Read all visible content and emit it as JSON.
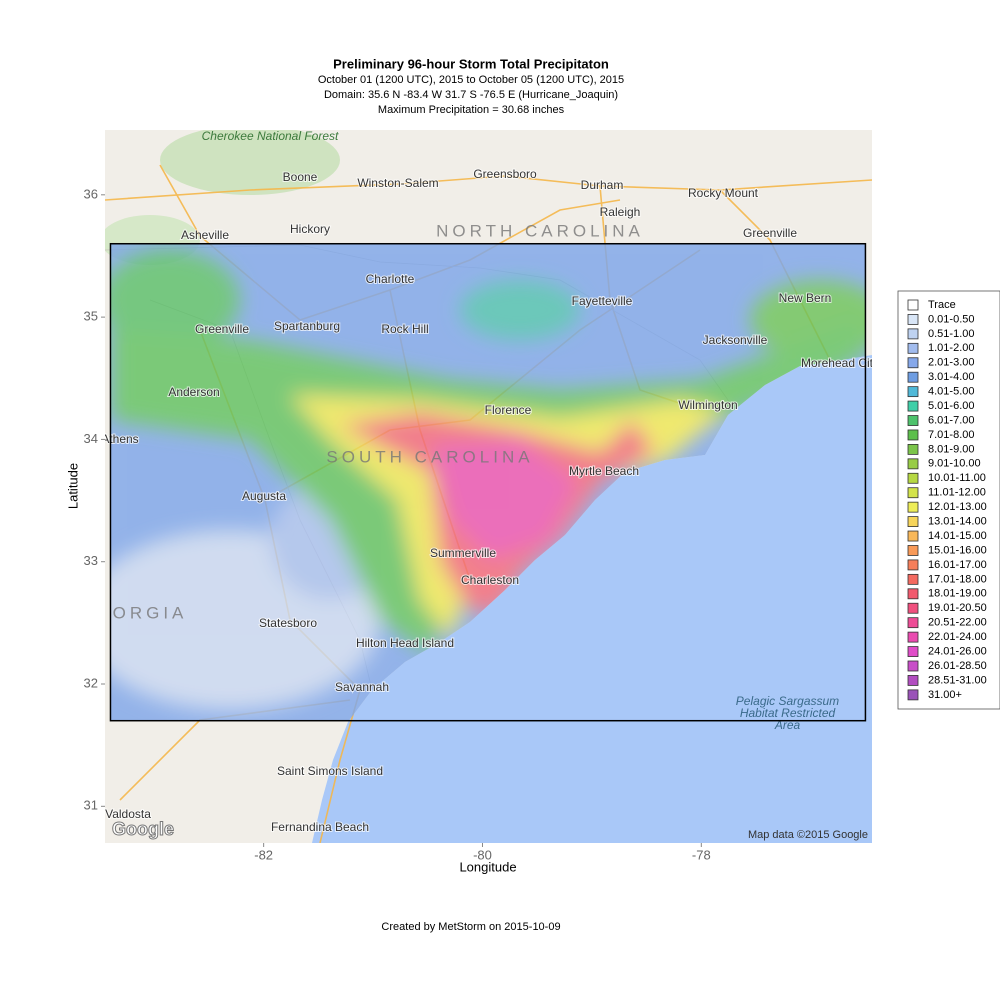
{
  "header": {
    "title": "Preliminary 96-hour Storm Total Precipitaton",
    "subtitle_lines": [
      "October 01 (1200 UTC), 2015 to October 05 (1200 UTC), 2015",
      "Domain: 35.6 N -83.4 W 31.7 S -76.5 E (Hurricane_Joaquin)",
      "Maximum Precipitation = 30.68 inches"
    ]
  },
  "axes": {
    "x_label": "Longitude",
    "y_label": "Latitude",
    "xlim": [
      -83.45,
      -76.44
    ],
    "ylim": [
      30.7,
      36.53
    ],
    "xticks": [
      -82,
      -80,
      -78
    ],
    "yticks": [
      31,
      32,
      33,
      34,
      35,
      36
    ]
  },
  "domain_box": {
    "north": 35.6,
    "west": -83.4,
    "south": 31.7,
    "east": -76.5
  },
  "legend": {
    "items": [
      {
        "label": "Trace",
        "color": "#ffffff"
      },
      {
        "label": "0.01-0.50",
        "color": "#d9e6f7"
      },
      {
        "label": "0.51-1.00",
        "color": "#bed2f1"
      },
      {
        "label": "1.01-2.00",
        "color": "#a2bcee"
      },
      {
        "label": "2.01-3.00",
        "color": "#86a8ea"
      },
      {
        "label": "3.01-4.00",
        "color": "#6e9de2"
      },
      {
        "label": "4.01-5.00",
        "color": "#50b9d8"
      },
      {
        "label": "5.01-6.00",
        "color": "#40cfa8"
      },
      {
        "label": "6.01-7.00",
        "color": "#4ec26c"
      },
      {
        "label": "7.01-8.00",
        "color": "#5cbf4b"
      },
      {
        "label": "8.01-9.00",
        "color": "#7bc44a"
      },
      {
        "label": "9.01-10.00",
        "color": "#98cc46"
      },
      {
        "label": "10.01-11.00",
        "color": "#b6d843"
      },
      {
        "label": "11.01-12.00",
        "color": "#d3e34b"
      },
      {
        "label": "12.01-13.00",
        "color": "#eeed58"
      },
      {
        "label": "13.01-14.00",
        "color": "#f7d55a"
      },
      {
        "label": "14.01-15.00",
        "color": "#f8b85a"
      },
      {
        "label": "15.01-16.00",
        "color": "#f89a58"
      },
      {
        "label": "16.01-17.00",
        "color": "#f67e5a"
      },
      {
        "label": "17.01-18.00",
        "color": "#f46a60"
      },
      {
        "label": "18.01-19.00",
        "color": "#f25a6e"
      },
      {
        "label": "19.01-20.50",
        "color": "#f0507e"
      },
      {
        "label": "20.51-22.00",
        "color": "#ee4c96"
      },
      {
        "label": "22.01-24.00",
        "color": "#ea4cb0"
      },
      {
        "label": "24.01-26.00",
        "color": "#e04cc8"
      },
      {
        "label": "26.01-28.50",
        "color": "#c84ec8"
      },
      {
        "label": "28.51-31.00",
        "color": "#b24ec0"
      },
      {
        "label": "31.00+",
        "color": "#9a52b8"
      }
    ]
  },
  "map_labels": [
    "Cherokee National Forest",
    "Boone",
    "Winston-Salem",
    "Greensboro",
    "Durham",
    "Raleigh",
    "Rocky Mount",
    "Asheville",
    "Hickory",
    "Greenville",
    "Charlotte",
    "Fayetteville",
    "New Bern",
    "Jacksonville",
    "Morehead City",
    "Greenville",
    "Spartanburg",
    "Rock Hill",
    "Anderson",
    "Florence",
    "Wilmington",
    "Athens",
    "Myrtle Beach",
    "Augusta",
    "Summerville",
    "Charleston",
    "Statesboro",
    "Hilton Head Island",
    "Savannah",
    "Saint Simons Island",
    "Valdosta",
    "Fernandina Beach",
    "NORTH CAROLINA",
    "SOUTH CAROLINA",
    "ORGIA",
    "Pelagic Sargassum Habitat Restricted Area"
  ],
  "attribution": "Map data ©2015 Google",
  "logo": "Google",
  "footer": "Created by MetStorm on 2015-10-09"
}
